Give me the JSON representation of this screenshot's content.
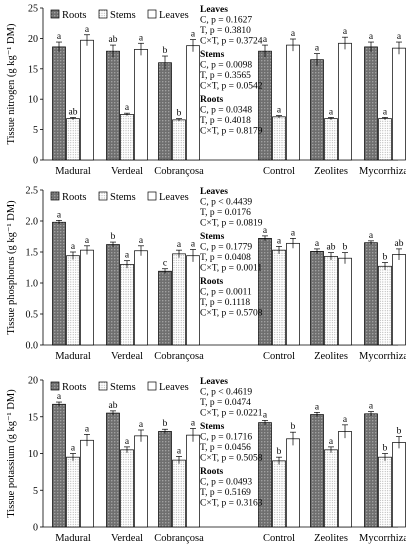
{
  "colors": {
    "roots": "#7a7a7a",
    "stems": "#ffffff",
    "leaves": "#ffffff",
    "axis": "#000000"
  },
  "chart_data": [
    {
      "type": "bar",
      "ylabel": "Tissue nitrogen (g kg⁻¹ DM)",
      "ylim": [
        0,
        25
      ],
      "yticks": [
        "0",
        "5",
        "10",
        "15",
        "20",
        "25"
      ],
      "categories": [
        "Madural",
        "Verdeal",
        "Cobrançosa",
        "Control",
        "Zeolites",
        "Mycorrhizal"
      ],
      "legend": [
        "Roots",
        "Stems",
        "Leaves"
      ],
      "series": [
        {
          "name": "Roots",
          "values": [
            18.6,
            17.9,
            16.0,
            17.9,
            16.5,
            18.6
          ],
          "errors": [
            0.8,
            1.0,
            1.1,
            1.0,
            1.0,
            0.8
          ],
          "letters": [
            "a",
            "ab",
            "b",
            "a",
            "a",
            "a"
          ]
        },
        {
          "name": "Stems",
          "values": [
            6.8,
            7.5,
            6.6,
            7.1,
            6.8,
            6.8
          ],
          "errors": [
            0.2,
            0.2,
            0.2,
            0.2,
            0.2,
            0.2
          ],
          "letters": [
            "ab",
            "a",
            "b",
            "a",
            "a",
            "a"
          ]
        },
        {
          "name": "Leaves",
          "values": [
            19.7,
            18.2,
            18.8,
            18.9,
            19.2,
            18.4
          ],
          "errors": [
            0.9,
            1.0,
            1.0,
            1.0,
            1.0,
            1.0
          ],
          "letters": [
            "a",
            "a",
            "a",
            "a",
            "a",
            "a"
          ]
        }
      ],
      "stats": [
        {
          "title": "Leaves",
          "lines": [
            "C, p = 0.1627",
            "T, p = 0.3810",
            "C×T, p = 0.3724"
          ]
        },
        {
          "title": "Stems",
          "lines": [
            "C, p = 0.0098",
            "T, p = 0.3565",
            "C×T, p = 0.0542"
          ]
        },
        {
          "title": "Roots",
          "lines": [
            "C, p = 0.0348",
            "T, p = 0.4018",
            "C×T, p = 0.8179"
          ]
        }
      ]
    },
    {
      "type": "bar",
      "ylabel": "Tissue phosphorus (g kg⁻¹ DM)",
      "ylim": [
        0,
        2.5
      ],
      "yticks": [
        "0.0",
        "0.5",
        "1.0",
        "1.5",
        "2.0",
        "2.5"
      ],
      "categories": [
        "Madural",
        "Verdeal",
        "Cobrançosa",
        "Control",
        "Zeolites",
        "Mycorrhizal"
      ],
      "legend": [
        "Roots",
        "Stems",
        "Leaves"
      ],
      "series": [
        {
          "name": "Roots",
          "values": [
            1.98,
            1.62,
            1.19,
            1.72,
            1.51,
            1.65
          ],
          "errors": [
            0.03,
            0.04,
            0.04,
            0.04,
            0.04,
            0.03
          ],
          "letters": [
            "a",
            "b",
            "c",
            "a",
            "a",
            "a"
          ]
        },
        {
          "name": "Stems",
          "values": [
            1.44,
            1.3,
            1.47,
            1.53,
            1.43,
            1.27
          ],
          "errors": [
            0.06,
            0.06,
            0.06,
            0.06,
            0.06,
            0.06
          ],
          "letters": [
            "a",
            "a",
            "a",
            "a",
            "ab",
            "b"
          ]
        },
        {
          "name": "Leaves",
          "values": [
            1.53,
            1.52,
            1.44,
            1.64,
            1.4,
            1.46
          ],
          "errors": [
            0.07,
            0.08,
            0.1,
            0.08,
            0.09,
            0.09
          ],
          "letters": [
            "a",
            "a",
            "a",
            "a",
            "b",
            "ab"
          ]
        }
      ],
      "stats": [
        {
          "title": "Leaves",
          "lines": [
            "C, p < 0.4439",
            "T, p = 0.0176",
            "C×T, p = 0.0819"
          ]
        },
        {
          "title": "Stems",
          "lines": [
            "C, p = 0.1779",
            "T, p = 0.0408",
            "C×T, p = 0.0011"
          ]
        },
        {
          "title": "Roots",
          "lines": [
            "C, p = 0.0011",
            "T, p = 0.1118",
            "C×T, p = 0.5708"
          ]
        }
      ]
    },
    {
      "type": "bar",
      "ylabel": "Tissue potassium (g kg⁻¹ DM)",
      "ylim": [
        0,
        20
      ],
      "yticks": [
        "0",
        "5",
        "10",
        "15",
        "20"
      ],
      "categories": [
        "Madural",
        "Verdeal",
        "Cobrançosa",
        "Control",
        "Zeolites",
        "Mycorrhizal"
      ],
      "legend": [
        "Roots",
        "Stems",
        "Leaves"
      ],
      "series": [
        {
          "name": "Roots",
          "values": [
            16.7,
            15.5,
            13.0,
            14.2,
            15.3,
            15.4
          ],
          "errors": [
            0.3,
            0.3,
            0.3,
            0.3,
            0.3,
            0.3
          ],
          "letters": [
            "a",
            "ab",
            "b",
            "a",
            "a",
            "a"
          ]
        },
        {
          "name": "Stems",
          "values": [
            9.5,
            10.5,
            9.1,
            9.0,
            10.5,
            9.5
          ],
          "errors": [
            0.5,
            0.4,
            0.5,
            0.5,
            0.4,
            0.5
          ],
          "letters": [
            "a",
            "a",
            "a",
            "b",
            "a",
            "b"
          ]
        },
        {
          "name": "Leaves",
          "values": [
            11.8,
            12.4,
            12.5,
            12.0,
            13.0,
            11.5
          ],
          "errors": [
            0.8,
            0.8,
            0.9,
            0.9,
            0.9,
            0.8
          ],
          "letters": [
            "a",
            "a",
            "a",
            "b",
            "a",
            "b"
          ]
        }
      ],
      "stats": [
        {
          "title": "Leaves",
          "lines": [
            "C, p < 0.4619",
            "T, p = 0.0474",
            "C×T, p = 0.0221"
          ]
        },
        {
          "title": "Stems",
          "lines": [
            "C, p = 0.1716",
            "T, p = 0.0456",
            "C×T, p = 0.5058"
          ]
        },
        {
          "title": "Roots",
          "lines": [
            "C, p = 0.0493",
            "T, p = 0.5169",
            "C×T, p = 0.3163"
          ]
        }
      ]
    }
  ]
}
